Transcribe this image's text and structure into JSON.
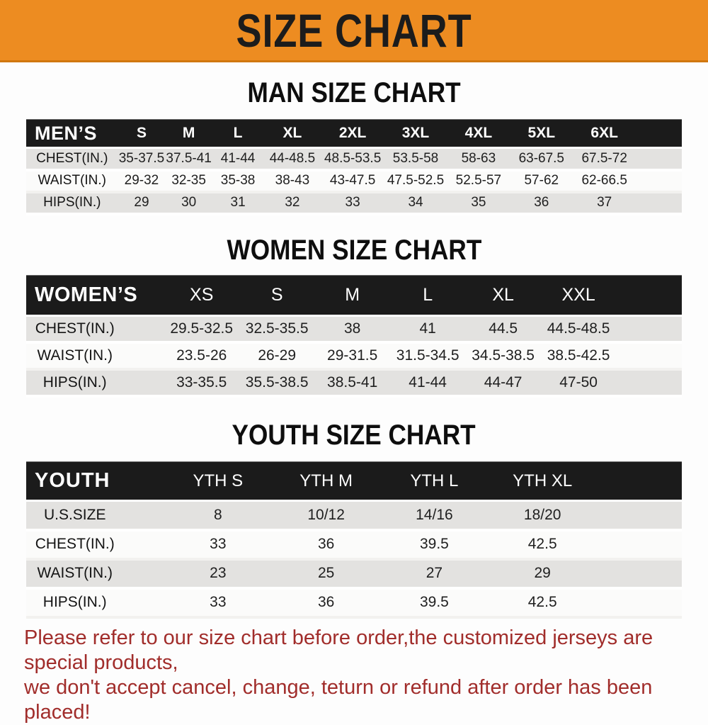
{
  "banner": {
    "title": "SIZE CHART"
  },
  "sections": [
    {
      "title": "MAN SIZE CHART",
      "header_label": "MEN’S",
      "columns": [
        "S",
        "M",
        "L",
        "XL",
        "2XL",
        "3XL",
        "4XL",
        "5XL",
        "6XL"
      ],
      "rows": [
        {
          "label": "CHEST(IN.)",
          "values": [
            "35-37.5",
            "37.5-41",
            "41-44",
            "44-48.5",
            "48.5-53.5",
            "53.5-58",
            "58-63",
            "63-67.5",
            "67.5-72"
          ]
        },
        {
          "label": "WAIST(IN.)",
          "values": [
            "29-32",
            "32-35",
            "35-38",
            "38-43",
            "43-47.5",
            "47.5-52.5",
            "52.5-57",
            "57-62",
            "62-66.5"
          ]
        },
        {
          "label": "HIPS(IN.)",
          "values": [
            "29",
            "30",
            "31",
            "32",
            "33",
            "34",
            "35",
            "36",
            "37"
          ]
        }
      ]
    },
    {
      "title": "WOMEN SIZE CHART",
      "header_label": "WOMEN’S",
      "columns": [
        "XS",
        "S",
        "M",
        "L",
        "XL",
        "XXL"
      ],
      "rows": [
        {
          "label": "CHEST(IN.)",
          "values": [
            "29.5-32.5",
            "32.5-35.5",
            "38",
            "41",
            "44.5",
            "44.5-48.5"
          ]
        },
        {
          "label": "WAIST(IN.)",
          "values": [
            "23.5-26",
            "26-29",
            "29-31.5",
            "31.5-34.5",
            "34.5-38.5",
            "38.5-42.5"
          ]
        },
        {
          "label": "HIPS(IN.)",
          "values": [
            "33-35.5",
            "35.5-38.5",
            "38.5-41",
            "41-44",
            "44-47",
            "47-50"
          ]
        }
      ]
    },
    {
      "title": "YOUTH SIZE CHART",
      "header_label": "YOUTH",
      "columns": [
        "YTH S",
        "YTH M",
        "YTH L",
        "YTH XL"
      ],
      "rows": [
        {
          "label": "U.S.SIZE",
          "values": [
            "8",
            "10/12",
            "14/16",
            "18/20"
          ]
        },
        {
          "label": "CHEST(IN.)",
          "values": [
            "33",
            "36",
            "39.5",
            "42.5"
          ]
        },
        {
          "label": "WAIST(IN.)",
          "values": [
            "23",
            "25",
            "27",
            "29"
          ]
        },
        {
          "label": "HIPS(IN.)",
          "values": [
            "33",
            "36",
            "39.5",
            "42.5"
          ]
        }
      ]
    }
  ],
  "footer": {
    "lines": [
      "Please refer to our size chart before order,the customized jerseys are special products,",
      "we don't accept cancel, change, teturn or refund after order has been placed!"
    ]
  },
  "colors": {
    "banner_bg": "#ED8C21",
    "header_bg": "#1B1B1B",
    "row_alt_bg": "#E3E2E0",
    "footer_text": "#A12D2B"
  }
}
